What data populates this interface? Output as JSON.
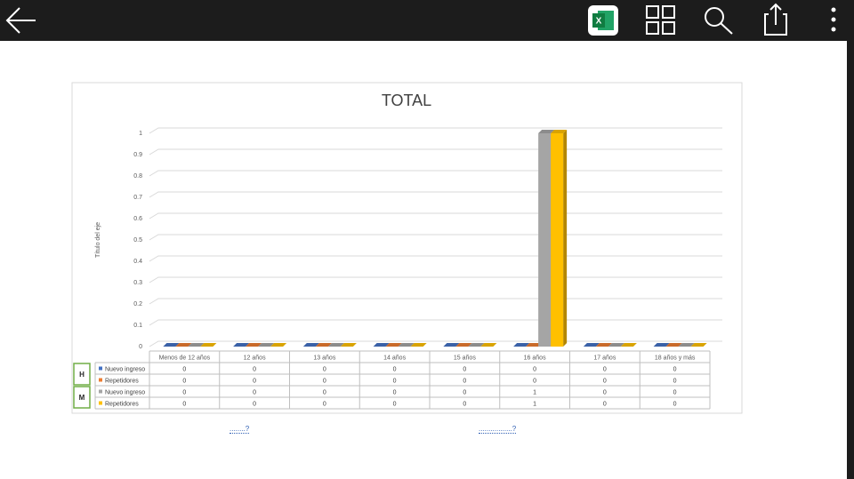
{
  "chart_data": {
    "type": "bar",
    "title": "TOTAL",
    "y_label": "Título del eje",
    "categories": [
      "Menos de 12 años",
      "12 años",
      "13 años",
      "14 años",
      "15 años",
      "16 años",
      "17 años",
      "18 años y más"
    ],
    "groups": [
      "H",
      "M"
    ],
    "series": [
      {
        "name": "Nuevo ingreso",
        "group": 0,
        "color": "#4472c4",
        "values": [
          0,
          0,
          0,
          0,
          0,
          0,
          0,
          0
        ]
      },
      {
        "name": "Repetidores",
        "group": 0,
        "color": "#ed7d31",
        "values": [
          0,
          0,
          0,
          0,
          0,
          0,
          0,
          0
        ]
      },
      {
        "name": "Nuevo ingreso",
        "group": 1,
        "color": "#a5a5a5",
        "values": [
          0,
          0,
          0,
          0,
          0,
          1,
          0,
          0
        ]
      },
      {
        "name": "Repetidores",
        "group": 1,
        "color": "#ffc000",
        "values": [
          0,
          0,
          0,
          0,
          0,
          1,
          0,
          0
        ]
      }
    ],
    "ylim": [
      0,
      1
    ],
    "yticks": [
      0,
      0.1,
      0.2,
      0.3,
      0.4,
      0.5,
      0.6,
      0.7,
      0.8,
      0.9,
      1
    ],
    "grid": true
  },
  "links": [
    "........?",
    ".................?"
  ]
}
